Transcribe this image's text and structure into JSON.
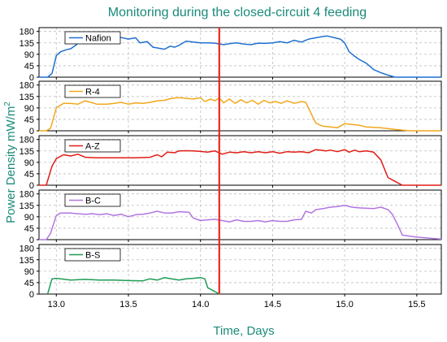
{
  "chart_data": {
    "type": "line",
    "title": "Monitoring during the closed-circuit 4 feeding",
    "xlabel": "Time, Days",
    "ylabel": "Power Density mW/m",
    "ylabel_superscript": "2",
    "xlim": [
      12.88,
      15.67
    ],
    "ylim": [
      0,
      195
    ],
    "x_ticks": [
      "13.0",
      "13.5",
      "14.0",
      "14.5",
      "15.0",
      "15.5"
    ],
    "x_tick_values": [
      13.0,
      13.5,
      14.0,
      14.5,
      15.0,
      15.5
    ],
    "y_ticks": [
      "0",
      "45",
      "90",
      "135",
      "180"
    ],
    "y_tick_values": [
      0,
      45,
      90,
      135,
      180
    ],
    "grid": true,
    "marker_line": {
      "x": 14.13,
      "color": "#e8261c"
    },
    "panels": [
      {
        "name": "Nafion",
        "color": "#1f6fd1",
        "points": [
          [
            12.88,
            0
          ],
          [
            12.94,
            0
          ],
          [
            12.97,
            15
          ],
          [
            13.0,
            85
          ],
          [
            13.03,
            100
          ],
          [
            13.07,
            108
          ],
          [
            13.1,
            112
          ],
          [
            13.14,
            128
          ],
          [
            13.17,
            152
          ],
          [
            13.21,
            158
          ],
          [
            13.25,
            140
          ],
          [
            13.28,
            160
          ],
          [
            13.31,
            150
          ],
          [
            13.35,
            155
          ],
          [
            13.39,
            148
          ],
          [
            13.42,
            160
          ],
          [
            13.45,
            156
          ],
          [
            13.5,
            150
          ],
          [
            13.55,
            155
          ],
          [
            13.58,
            135
          ],
          [
            13.63,
            140
          ],
          [
            13.67,
            118
          ],
          [
            13.7,
            115
          ],
          [
            13.75,
            110
          ],
          [
            13.79,
            122
          ],
          [
            13.82,
            118
          ],
          [
            13.85,
            125
          ],
          [
            13.9,
            142
          ],
          [
            13.95,
            138
          ],
          [
            14.0,
            135
          ],
          [
            14.05,
            135
          ],
          [
            14.1,
            134
          ],
          [
            14.16,
            128
          ],
          [
            14.2,
            132
          ],
          [
            14.25,
            135
          ],
          [
            14.3,
            130
          ],
          [
            14.35,
            128
          ],
          [
            14.4,
            134
          ],
          [
            14.45,
            133
          ],
          [
            14.5,
            135
          ],
          [
            14.55,
            140
          ],
          [
            14.6,
            135
          ],
          [
            14.65,
            145
          ],
          [
            14.7,
            138
          ],
          [
            14.75,
            150
          ],
          [
            14.8,
            155
          ],
          [
            14.85,
            160
          ],
          [
            14.88,
            162
          ],
          [
            14.93,
            155
          ],
          [
            14.97,
            150
          ],
          [
            15.0,
            135
          ],
          [
            15.03,
            100
          ],
          [
            15.07,
            82
          ],
          [
            15.1,
            70
          ],
          [
            15.15,
            55
          ],
          [
            15.2,
            30
          ],
          [
            15.25,
            18
          ],
          [
            15.3,
            8
          ],
          [
            15.35,
            0
          ],
          [
            15.67,
            0
          ]
        ]
      },
      {
        "name": "R-4",
        "color": "#f0a81c",
        "points": [
          [
            12.88,
            0
          ],
          [
            12.93,
            0
          ],
          [
            12.96,
            10
          ],
          [
            13.0,
            90
          ],
          [
            13.05,
            108
          ],
          [
            13.1,
            108
          ],
          [
            13.15,
            105
          ],
          [
            13.2,
            118
          ],
          [
            13.24,
            112
          ],
          [
            13.28,
            105
          ],
          [
            13.35,
            105
          ],
          [
            13.4,
            108
          ],
          [
            13.45,
            112
          ],
          [
            13.5,
            105
          ],
          [
            13.55,
            110
          ],
          [
            13.6,
            108
          ],
          [
            13.65,
            112
          ],
          [
            13.7,
            118
          ],
          [
            13.75,
            120
          ],
          [
            13.8,
            128
          ],
          [
            13.85,
            130
          ],
          [
            13.9,
            128
          ],
          [
            13.95,
            125
          ],
          [
            14.0,
            130
          ],
          [
            14.03,
            115
          ],
          [
            14.07,
            125
          ],
          [
            14.1,
            118
          ],
          [
            14.13,
            130
          ],
          [
            14.16,
            110
          ],
          [
            14.2,
            125
          ],
          [
            14.24,
            108
          ],
          [
            14.28,
            122
          ],
          [
            14.32,
            110
          ],
          [
            14.36,
            120
          ],
          [
            14.4,
            105
          ],
          [
            14.44,
            120
          ],
          [
            14.48,
            110
          ],
          [
            14.52,
            115
          ],
          [
            14.56,
            108
          ],
          [
            14.6,
            118
          ],
          [
            14.65,
            108
          ],
          [
            14.7,
            115
          ],
          [
            14.73,
            112
          ],
          [
            14.77,
            65
          ],
          [
            14.8,
            30
          ],
          [
            14.85,
            18
          ],
          [
            14.9,
            15
          ],
          [
            14.95,
            12
          ],
          [
            15.0,
            28
          ],
          [
            15.05,
            25
          ],
          [
            15.1,
            22
          ],
          [
            15.15,
            15
          ],
          [
            15.25,
            12
          ],
          [
            15.35,
            5
          ],
          [
            15.45,
            0
          ],
          [
            15.67,
            0
          ]
        ]
      },
      {
        "name": "A-Z",
        "color": "#e01d15",
        "points": [
          [
            12.88,
            0
          ],
          [
            12.93,
            0
          ],
          [
            12.97,
            75
          ],
          [
            13.0,
            105
          ],
          [
            13.05,
            120
          ],
          [
            13.1,
            115
          ],
          [
            13.15,
            122
          ],
          [
            13.2,
            110
          ],
          [
            13.28,
            108
          ],
          [
            13.35,
            108
          ],
          [
            13.45,
            108
          ],
          [
            13.55,
            108
          ],
          [
            13.65,
            110
          ],
          [
            13.7,
            120
          ],
          [
            13.73,
            112
          ],
          [
            13.77,
            130
          ],
          [
            13.82,
            128
          ],
          [
            13.85,
            135
          ],
          [
            13.9,
            136
          ],
          [
            13.95,
            135
          ],
          [
            14.0,
            133
          ],
          [
            14.05,
            130
          ],
          [
            14.1,
            135
          ],
          [
            14.15,
            122
          ],
          [
            14.2,
            130
          ],
          [
            14.25,
            128
          ],
          [
            14.3,
            132
          ],
          [
            14.35,
            128
          ],
          [
            14.4,
            132
          ],
          [
            14.45,
            128
          ],
          [
            14.5,
            132
          ],
          [
            14.55,
            126
          ],
          [
            14.6,
            132
          ],
          [
            14.65,
            130
          ],
          [
            14.7,
            132
          ],
          [
            14.75,
            128
          ],
          [
            14.8,
            140
          ],
          [
            14.83,
            138
          ],
          [
            14.87,
            135
          ],
          [
            14.9,
            138
          ],
          [
            14.95,
            132
          ],
          [
            15.0,
            140
          ],
          [
            15.03,
            130
          ],
          [
            15.07,
            138
          ],
          [
            15.1,
            132
          ],
          [
            15.15,
            135
          ],
          [
            15.2,
            130
          ],
          [
            15.25,
            100
          ],
          [
            15.3,
            30
          ],
          [
            15.35,
            15
          ],
          [
            15.4,
            0
          ],
          [
            15.67,
            0
          ]
        ]
      },
      {
        "name": "B-C",
        "color": "#b175e0",
        "points": [
          [
            12.88,
            0
          ],
          [
            12.93,
            0
          ],
          [
            12.96,
            25
          ],
          [
            13.0,
            95
          ],
          [
            13.03,
            105
          ],
          [
            13.1,
            105
          ],
          [
            13.15,
            102
          ],
          [
            13.2,
            100
          ],
          [
            13.25,
            102
          ],
          [
            13.3,
            98
          ],
          [
            13.35,
            102
          ],
          [
            13.4,
            95
          ],
          [
            13.45,
            100
          ],
          [
            13.5,
            90
          ],
          [
            13.55,
            98
          ],
          [
            13.6,
            100
          ],
          [
            13.65,
            105
          ],
          [
            13.7,
            112
          ],
          [
            13.75,
            105
          ],
          [
            13.8,
            105
          ],
          [
            13.85,
            110
          ],
          [
            13.92,
            108
          ],
          [
            13.95,
            85
          ],
          [
            14.0,
            75
          ],
          [
            14.05,
            78
          ],
          [
            14.1,
            80
          ],
          [
            14.15,
            75
          ],
          [
            14.2,
            70
          ],
          [
            14.25,
            78
          ],
          [
            14.3,
            72
          ],
          [
            14.35,
            72
          ],
          [
            14.4,
            75
          ],
          [
            14.45,
            70
          ],
          [
            14.5,
            75
          ],
          [
            14.55,
            72
          ],
          [
            14.6,
            72
          ],
          [
            14.65,
            78
          ],
          [
            14.7,
            80
          ],
          [
            14.73,
            112
          ],
          [
            14.77,
            105
          ],
          [
            14.8,
            118
          ],
          [
            14.85,
            122
          ],
          [
            14.9,
            128
          ],
          [
            14.95,
            130
          ],
          [
            15.0,
            135
          ],
          [
            15.05,
            128
          ],
          [
            15.1,
            125
          ],
          [
            15.2,
            122
          ],
          [
            15.25,
            128
          ],
          [
            15.3,
            118
          ],
          [
            15.33,
            100
          ],
          [
            15.37,
            55
          ],
          [
            15.4,
            18
          ],
          [
            15.5,
            10
          ],
          [
            15.6,
            5
          ],
          [
            15.67,
            2
          ]
        ]
      },
      {
        "name": "B-S",
        "color": "#1d9c55",
        "points": [
          [
            12.94,
            0
          ],
          [
            12.97,
            60
          ],
          [
            13.0,
            62
          ],
          [
            13.1,
            55
          ],
          [
            13.2,
            58
          ],
          [
            13.3,
            55
          ],
          [
            13.4,
            55
          ],
          [
            13.5,
            53
          ],
          [
            13.6,
            52
          ],
          [
            13.65,
            60
          ],
          [
            13.7,
            55
          ],
          [
            13.75,
            65
          ],
          [
            13.8,
            60
          ],
          [
            13.85,
            55
          ],
          [
            13.9,
            60
          ],
          [
            13.95,
            62
          ],
          [
            14.0,
            65
          ],
          [
            14.03,
            60
          ],
          [
            14.05,
            25
          ],
          [
            14.1,
            10
          ],
          [
            14.13,
            0
          ]
        ]
      }
    ]
  }
}
